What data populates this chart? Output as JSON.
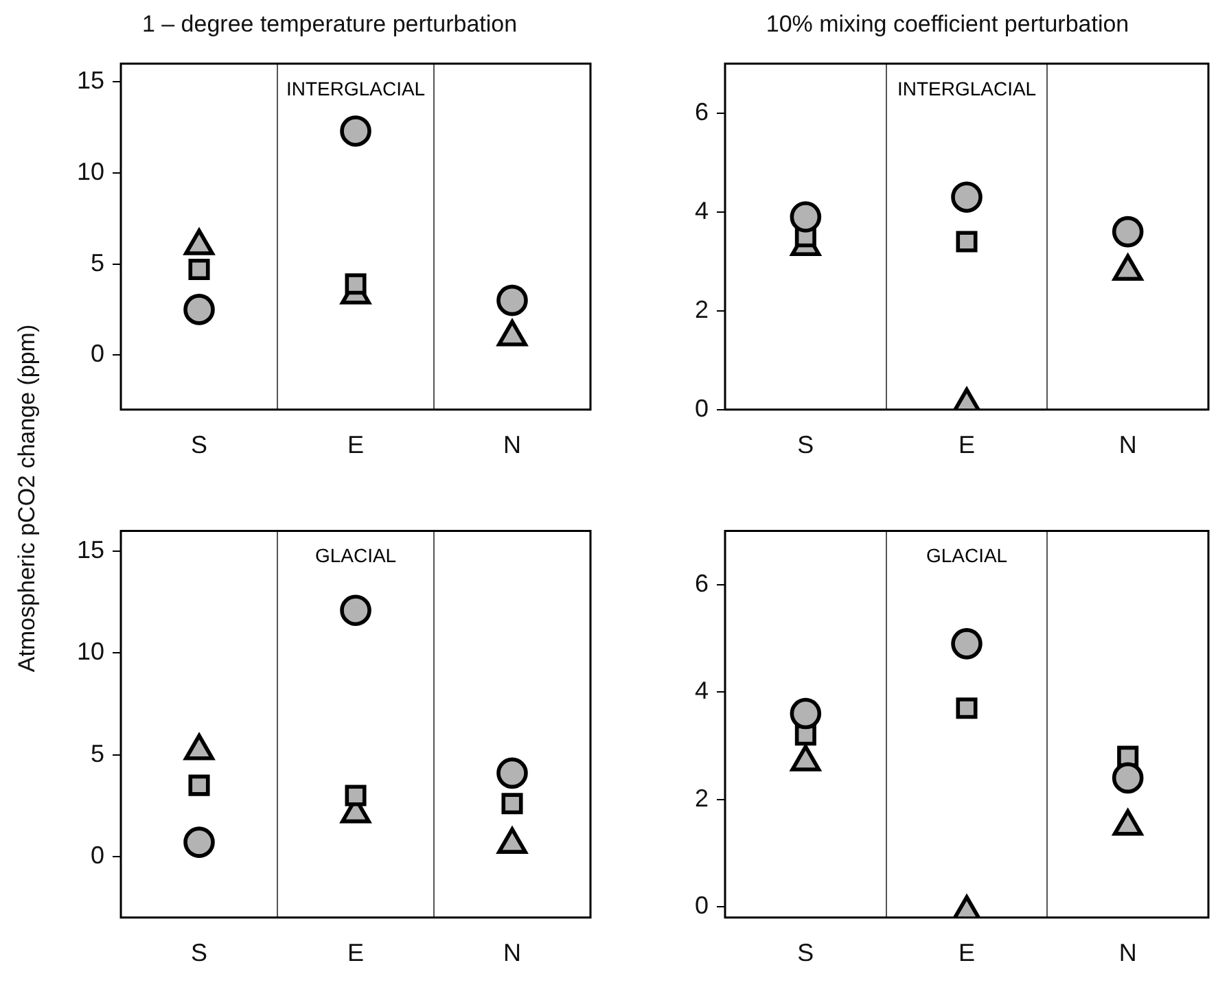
{
  "chart_data": [
    {
      "type": "scatter",
      "title": "1 – degree temperature perturbation",
      "ylabel": "Atmospheric pCO2 change (ppm)",
      "categories": [
        "S",
        "E",
        "N"
      ],
      "ylim": [
        -3,
        16
      ],
      "yticks": [
        0,
        5,
        10,
        15
      ],
      "grid": "x",
      "annotations": [
        "INTERGLACIAL"
      ],
      "series": [
        {
          "color": "#b3b3b3",
          "marker": "circle",
          "values": [
            2.5,
            12.3,
            3.0
          ]
        },
        {
          "color": "#b3b3b3",
          "marker": "square",
          "values": [
            4.7,
            3.9,
            null
          ]
        },
        {
          "color": "#b3b3b3",
          "marker": "triangle",
          "values": [
            6.0,
            3.3,
            1.0
          ]
        }
      ]
    },
    {
      "type": "scatter",
      "title": "10% mixing coefficient perturbation",
      "categories": [
        "S",
        "E",
        "N"
      ],
      "ylim": [
        0,
        7
      ],
      "yticks": [
        0,
        2,
        4,
        6
      ],
      "grid": "x",
      "annotations": [
        "INTERGLACIAL"
      ],
      "series": [
        {
          "color": "#b3b3b3",
          "marker": "circle",
          "values": [
            3.9,
            4.3,
            3.6
          ]
        },
        {
          "color": "#b3b3b3",
          "marker": "square",
          "values": [
            3.5,
            3.4,
            null
          ]
        },
        {
          "color": "#b3b3b3",
          "marker": "triangle",
          "values": [
            3.3,
            0.1,
            2.8
          ]
        }
      ]
    },
    {
      "type": "scatter",
      "categories": [
        "S",
        "E",
        "N"
      ],
      "ylim": [
        -3,
        16
      ],
      "yticks": [
        0,
        5,
        10,
        15
      ],
      "grid": "x",
      "annotations": [
        "GLACIAL"
      ],
      "series": [
        {
          "color": "#b3b3b3",
          "marker": "circle",
          "values": [
            0.7,
            12.1,
            4.1
          ]
        },
        {
          "color": "#b3b3b3",
          "marker": "square",
          "values": [
            3.5,
            3.0,
            2.6
          ]
        },
        {
          "color": "#b3b3b3",
          "marker": "triangle",
          "values": [
            5.2,
            2.1,
            0.6
          ]
        }
      ]
    },
    {
      "type": "scatter",
      "categories": [
        "S",
        "E",
        "N"
      ],
      "ylim": [
        -0.2,
        7
      ],
      "yticks": [
        0,
        2,
        4,
        6
      ],
      "grid": "x",
      "annotations": [
        "GLACIAL"
      ],
      "series": [
        {
          "color": "#b3b3b3",
          "marker": "circle",
          "values": [
            3.6,
            4.9,
            2.4
          ]
        },
        {
          "color": "#b3b3b3",
          "marker": "square",
          "values": [
            3.2,
            3.7,
            2.8
          ]
        },
        {
          "color": "#b3b3b3",
          "marker": "triangle",
          "values": [
            2.7,
            -0.1,
            1.5
          ]
        }
      ]
    }
  ]
}
